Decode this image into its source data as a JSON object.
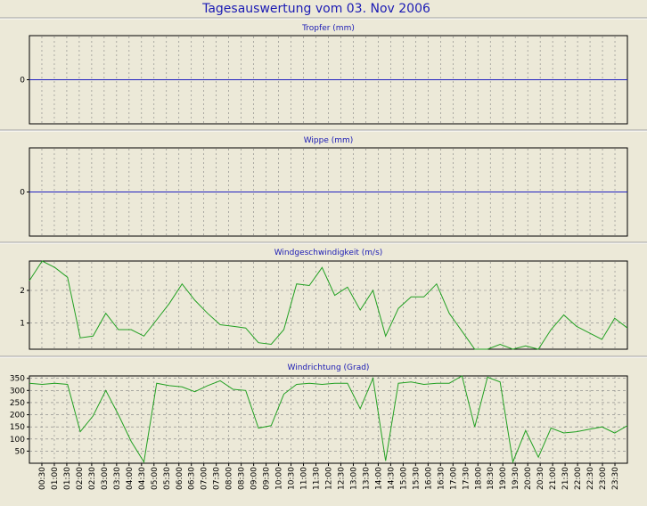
{
  "page_title": "Tagesauswertung vom 03. Nov 2006",
  "colors": {
    "background": "#ECE9D8",
    "title": "#1A1AB4",
    "panel_title": "#1A1AB4",
    "zero_line": "#2020C0",
    "series": "#22A022",
    "grid": "#808080",
    "text": "#000000"
  },
  "x_labels": [
    "00:30",
    "01:00",
    "01:30",
    "02:00",
    "02:30",
    "03:00",
    "03:30",
    "04:00",
    "04:30",
    "05:00",
    "05:30",
    "06:00",
    "06:30",
    "07:00",
    "07:30",
    "08:00",
    "08:30",
    "09:00",
    "09:30",
    "10:00",
    "10:30",
    "11:00",
    "11:30",
    "12:00",
    "12:30",
    "13:00",
    "13:30",
    "14:00",
    "14:30",
    "15:00",
    "15:30",
    "16:00",
    "16:30",
    "17:00",
    "17:30",
    "18:00",
    "18:30",
    "19:00",
    "19:30",
    "20:00",
    "20:30",
    "21:00",
    "21:30",
    "22:00",
    "22:30",
    "23:00",
    "23:30"
  ],
  "chart_data": [
    {
      "type": "line",
      "title": "Tropfer (mm)",
      "yticks": [
        0
      ],
      "ylim": [
        -1,
        1
      ],
      "values": [],
      "grid": true
    },
    {
      "type": "line",
      "title": "Wippe (mm)",
      "yticks": [
        0
      ],
      "ylim": [
        -1,
        1
      ],
      "values": [],
      "grid": true
    },
    {
      "type": "line",
      "title": "Windgeschwindigkeit (m/s)",
      "yticks": [
        1,
        2
      ],
      "ylim": [
        0.2,
        2.9
      ],
      "grid": true,
      "x_start": "00:00",
      "x_step_minutes": 30,
      "values": [
        2.3,
        2.9,
        2.7,
        2.4,
        0.55,
        0.6,
        1.3,
        0.8,
        0.8,
        0.6,
        1.1,
        1.6,
        2.2,
        1.7,
        1.3,
        0.95,
        0.9,
        0.85,
        0.4,
        0.35,
        0.8,
        2.2,
        2.15,
        2.7,
        1.85,
        2.1,
        1.4,
        2.0,
        0.6,
        1.45,
        1.8,
        1.8,
        2.2,
        1.3,
        0.75,
        0.2,
        0.2,
        0.35,
        0.2,
        0.3,
        0.2,
        0.8,
        1.25,
        0.9,
        0.7,
        0.5,
        1.15,
        0.85
      ]
    },
    {
      "type": "line",
      "title": "Windrichtung (Grad)",
      "yticks": [
        50,
        100,
        150,
        200,
        250,
        300,
        350
      ],
      "ylim": [
        0,
        360
      ],
      "grid": true,
      "x_start": "00:00",
      "x_step_minutes": 30,
      "values": [
        330,
        325,
        330,
        325,
        130,
        195,
        300,
        200,
        90,
        5,
        330,
        320,
        315,
        295,
        320,
        340,
        305,
        300,
        145,
        155,
        285,
        325,
        330,
        325,
        330,
        330,
        225,
        350,
        10,
        330,
        335,
        325,
        330,
        330,
        360,
        150,
        355,
        335,
        5,
        135,
        25,
        145,
        125,
        130,
        140,
        150,
        125,
        155
      ]
    }
  ]
}
